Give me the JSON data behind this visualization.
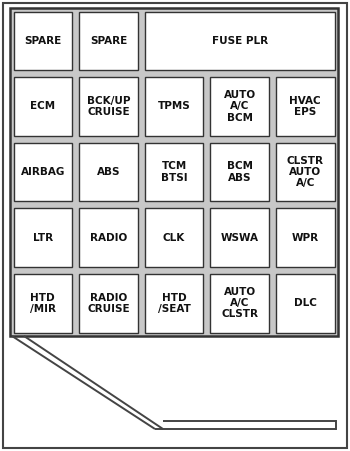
{
  "bg_color": "#c8c8c8",
  "outer_bg": "#ffffff",
  "cell_bg": "#ffffff",
  "cell_border": "#333333",
  "grid_bg": "#c8c8c8",
  "text_color": "#111111",
  "outer_border_color": "#333333",
  "wire_color": "#444444",
  "row0": [
    "SPARE",
    "SPARE",
    "FUSE PLR"
  ],
  "row0_spans": [
    1,
    1,
    3
  ],
  "row1": [
    "ECM",
    "BCK/UP\nCRUISE",
    "TPMS",
    "AUTO\nA/C\nBCM",
    "HVAC\nEPS"
  ],
  "row2": [
    "AIRBAG",
    "ABS",
    "TCM\nBTSI",
    "BCM\nABS",
    "CLSTR\nAUTO\nA/C"
  ],
  "row3": [
    "LTR",
    "RADIO",
    "CLK",
    "WSWA",
    "WPR"
  ],
  "row4": [
    "HTD\n/MIR",
    "RADIO\nCRUISE",
    "HTD\n/SEAT",
    "AUTO\nA/C\nCLSTR",
    "DLC"
  ],
  "n_cols": 5,
  "n_rows": 5,
  "font_size": 7.5
}
